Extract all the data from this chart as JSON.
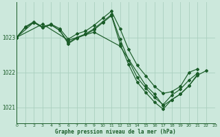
{
  "background_color": "#cce8dc",
  "grid_color": "#aacfbf",
  "line_color": "#1a5c28",
  "ylim": [
    1020.55,
    1024.0
  ],
  "xlim": [
    0,
    23
  ],
  "yticks": [
    1021,
    1022,
    1023
  ],
  "xticks": [
    0,
    1,
    2,
    3,
    4,
    5,
    6,
    7,
    8,
    9,
    10,
    11,
    12,
    13,
    14,
    15,
    16,
    17,
    18,
    19,
    20,
    21,
    22,
    23
  ],
  "xlabel": "Graphe pression niveau de la mer (hPa)",
  "series": [
    {
      "x": [
        0,
        1,
        2,
        3,
        4,
        5,
        6,
        7,
        8,
        9,
        10,
        11,
        12,
        13,
        14,
        15,
        16,
        17,
        18,
        19,
        20,
        21
      ],
      "y": [
        1023.0,
        1023.3,
        1023.45,
        1023.3,
        1023.38,
        1023.25,
        1022.95,
        1023.1,
        1023.18,
        1023.35,
        1023.55,
        1023.75,
        1023.25,
        1022.65,
        1022.2,
        1021.9,
        1021.6,
        1021.4,
        1021.45,
        1021.6,
        1022.0,
        1022.1
      ]
    },
    {
      "x": [
        0,
        1,
        2,
        3,
        4,
        5,
        6,
        7,
        8,
        9,
        10,
        11,
        12,
        13,
        14,
        15,
        16,
        17,
        18,
        19,
        20,
        21
      ],
      "y": [
        1023.0,
        1023.28,
        1023.43,
        1023.28,
        1023.36,
        1023.2,
        1022.85,
        1023.0,
        1023.1,
        1023.25,
        1023.45,
        1023.65,
        1022.95,
        1022.35,
        1021.85,
        1021.55,
        1021.28,
        1021.08,
        1021.35,
        1021.52,
        1021.78,
        1021.98
      ]
    },
    {
      "x": [
        0,
        2,
        3,
        4,
        5,
        6,
        7,
        8,
        9,
        10,
        11,
        12,
        13,
        14,
        15,
        16,
        17,
        18,
        19,
        20,
        21
      ],
      "y": [
        1023.0,
        1023.43,
        1023.28,
        1023.36,
        1023.2,
        1022.82,
        1022.98,
        1023.08,
        1023.22,
        1023.42,
        1023.62,
        1022.82,
        1022.22,
        1021.72,
        1021.42,
        1021.15,
        1020.95,
        1021.22,
        1021.38,
        1021.62,
        1021.95
      ]
    },
    {
      "x": [
        0,
        3,
        6,
        9,
        12,
        15,
        16,
        17,
        18,
        19,
        20,
        21,
        22
      ],
      "y": [
        1023.0,
        1023.38,
        1022.92,
        1023.15,
        1022.75,
        1021.62,
        1021.38,
        1021.05,
        1021.22,
        1021.38,
        1021.62,
        1021.92,
        1022.05
      ]
    }
  ]
}
